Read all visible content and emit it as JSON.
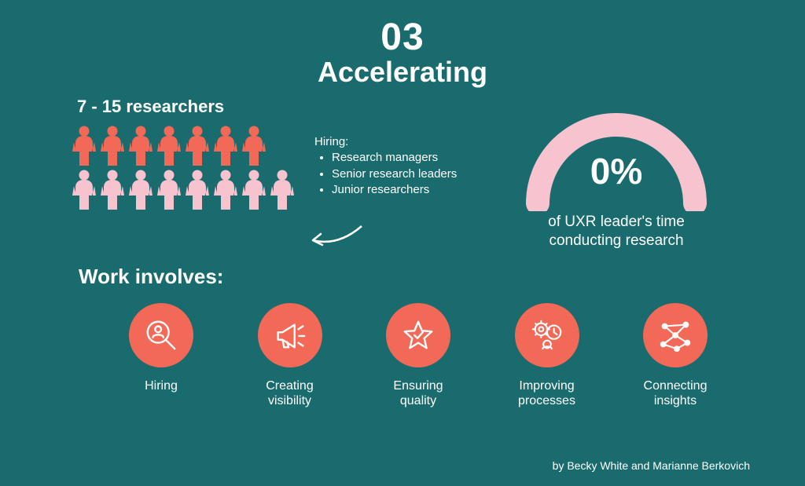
{
  "colors": {
    "background": "#1a6b6e",
    "text": "#ffffff",
    "coral": "#f26957",
    "pink": "#f6c3cf",
    "iconStroke": "#ffffff"
  },
  "header": {
    "number": "03",
    "title": "Accelerating",
    "number_fontsize": 48,
    "title_fontsize": 36
  },
  "researchers": {
    "label": "7 - 15 researchers",
    "rows": [
      {
        "count": 7,
        "color": "#f26957"
      },
      {
        "count": 8,
        "color": "#f6c3cf"
      }
    ]
  },
  "hiring": {
    "title": "Hiring:",
    "items": [
      "Research managers",
      "Senior research leaders",
      "Junior researchers"
    ]
  },
  "gauge": {
    "percent_label": "0%",
    "caption_line1": "of UXR leader's time",
    "caption_line2": "conducting research",
    "arc_color": "#f6c3cf",
    "stroke_width": 30
  },
  "work": {
    "title": "Work involves:",
    "icon_bg": "#f26957",
    "items": [
      {
        "name": "hiring",
        "label": "Hiring",
        "icon": "search-person"
      },
      {
        "name": "creating-visibility",
        "label": "Creating visibility",
        "icon": "megaphone"
      },
      {
        "name": "ensuring-quality",
        "label": "Ensuring quality",
        "icon": "star-check"
      },
      {
        "name": "improving-processes",
        "label": "Improving processes",
        "icon": "gear-clock"
      },
      {
        "name": "connecting-insights",
        "label": "Connecting insights",
        "icon": "network"
      }
    ]
  },
  "byline": "by Becky White and Marianne Berkovich"
}
